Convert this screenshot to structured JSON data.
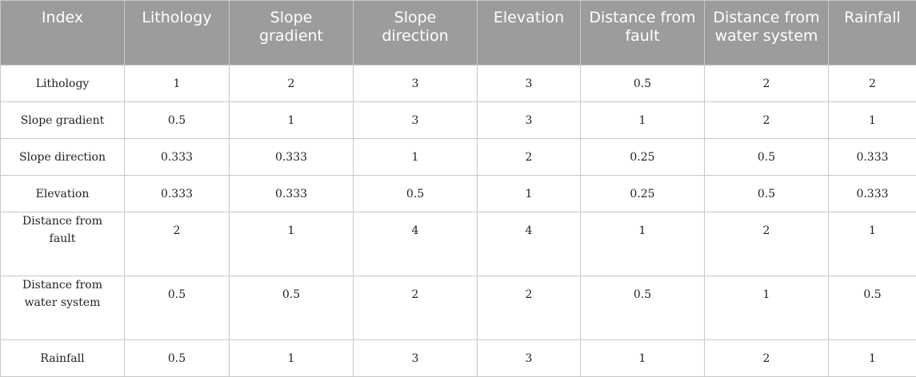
{
  "table": {
    "headers": [
      "Index",
      "Lithology",
      "Slope gradient",
      "Slope direction",
      "Elevation",
      "Distance from fault",
      "Distance from water system",
      "Rainfall"
    ],
    "rows": [
      {
        "label": "Lithology",
        "values": [
          "1",
          "2",
          "3",
          "3",
          "0.5",
          "2",
          "2"
        ]
      },
      {
        "label": "Slope gradient",
        "values": [
          "0.5",
          "1",
          "3",
          "3",
          "1",
          "2",
          "1"
        ]
      },
      {
        "label": "Slope direction",
        "values": [
          "0.333",
          "0.333",
          "1",
          "2",
          "0.25",
          "0.5",
          "0.333"
        ]
      },
      {
        "label": "Elevation",
        "values": [
          "0.333",
          "0.333",
          "0.5",
          "1",
          "0.25",
          "0.5",
          "0.333"
        ]
      },
      {
        "label": "Distance from fault",
        "values": [
          "2",
          "1",
          "4",
          "4",
          "1",
          "2",
          "1"
        ]
      },
      {
        "label": "Distance from water system",
        "values": [
          "0.5",
          "0.5",
          "2",
          "2",
          "0.5",
          "1",
          "0.5"
        ]
      },
      {
        "label": "Rainfall",
        "values": [
          "0.5",
          "1",
          "3",
          "3",
          "1",
          "2",
          "1"
        ]
      }
    ]
  },
  "colors": {
    "header_background": "#9c9c9c",
    "header_text": "#ffffff",
    "grid_lines": "#c8c8c8",
    "body_text": "#222222"
  }
}
